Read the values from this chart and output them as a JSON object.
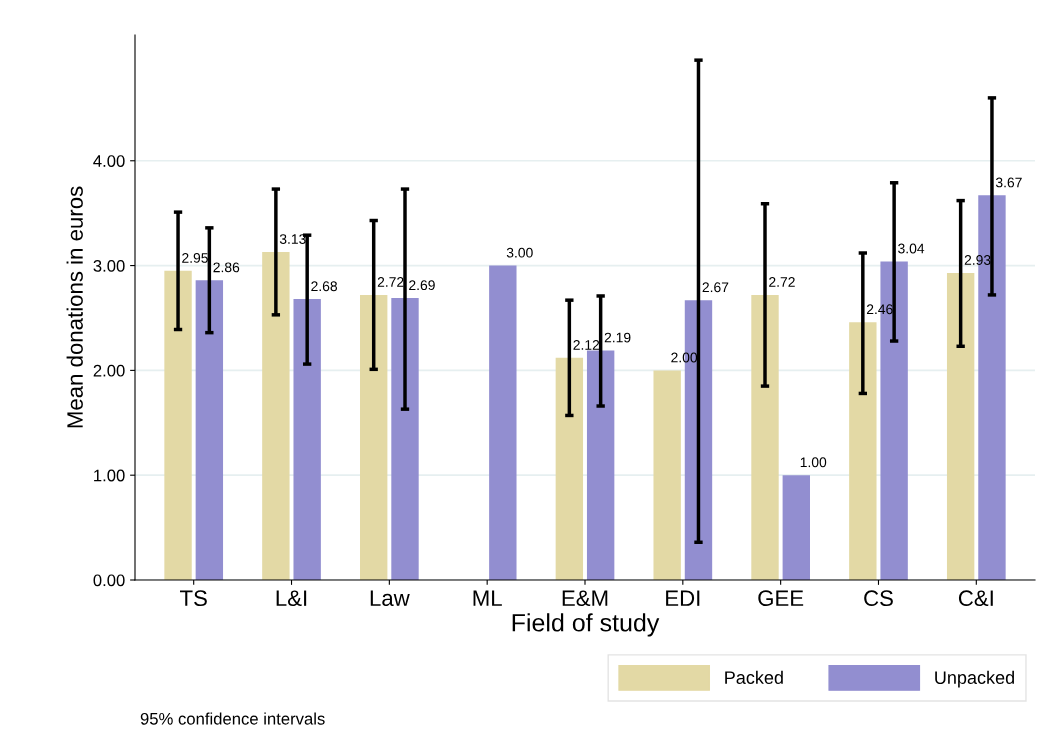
{
  "chart_data": {
    "type": "bar",
    "xlabel": "Field of study",
    "ylabel": "Mean donations in euros",
    "categories": [
      "TS",
      "L&I",
      "Law",
      "ML",
      "E&M",
      "EDI",
      "GEE",
      "CS",
      "C&I"
    ],
    "series": [
      {
        "name": "Packed",
        "color": "#e3d9a5",
        "values": [
          2.95,
          3.13,
          2.72,
          null,
          2.12,
          2.0,
          2.72,
          2.46,
          2.93
        ],
        "value_labels": [
          "2.95",
          "3.13",
          "2.72",
          null,
          "2.12",
          "2.00",
          "2.72",
          "2.46",
          "2.93"
        ],
        "errors": [
          [
            2.39,
            3.51
          ],
          [
            2.53,
            3.73
          ],
          [
            2.01,
            3.43
          ],
          null,
          [
            1.57,
            2.67
          ],
          null,
          [
            1.85,
            3.59
          ],
          [
            1.78,
            3.12
          ],
          [
            2.23,
            3.62
          ]
        ]
      },
      {
        "name": "Unpacked",
        "color": "#928ed0",
        "values": [
          2.86,
          2.68,
          2.69,
          3.0,
          2.19,
          2.67,
          1.0,
          3.04,
          3.67
        ],
        "value_labels": [
          "2.86",
          "2.68",
          "2.69",
          "3.00",
          "2.19",
          "2.67",
          "1.00",
          "3.04",
          "3.67"
        ],
        "errors": [
          [
            2.36,
            3.36
          ],
          [
            2.06,
            3.29
          ],
          [
            1.63,
            3.73
          ],
          null,
          [
            1.66,
            2.71
          ],
          [
            0.36,
            4.96
          ],
          null,
          [
            2.28,
            3.79
          ],
          [
            2.72,
            4.6
          ]
        ]
      }
    ],
    "ylim": [
      0,
      5.2
    ],
    "yticks": [
      {
        "value": 0,
        "label": "0.00"
      },
      {
        "value": 1,
        "label": "1.00"
      },
      {
        "value": 2,
        "label": "2.00"
      },
      {
        "value": 3,
        "label": "3.00"
      },
      {
        "value": 4,
        "label": "4.00"
      }
    ],
    "grid": "y",
    "legend": "bottom",
    "annotations": [
      "95% confidence intervals"
    ]
  }
}
